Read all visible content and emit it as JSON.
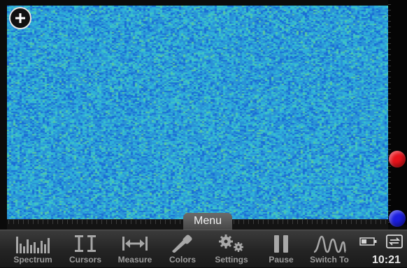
{
  "spectrogram": {
    "palette": [
      "#1a6fd6",
      "#2a93d6",
      "#2fb0d8",
      "#3fc4c4",
      "#57c9a0"
    ]
  },
  "menu_tab": {
    "label": "Menu"
  },
  "toolbar": {
    "items": [
      {
        "label": "Spectrum",
        "icon": "spectrum-bars-icon"
      },
      {
        "label": "Cursors",
        "icon": "cursors-icon"
      },
      {
        "label": "Measure",
        "icon": "measure-icon"
      },
      {
        "label": "Colors",
        "icon": "eyedropper-icon"
      },
      {
        "label": "Settings",
        "icon": "gears-icon"
      },
      {
        "label": "Pause",
        "icon": "pause-icon"
      },
      {
        "label": "Switch To",
        "icon": "waveform-icon"
      }
    ]
  },
  "status": {
    "time": "10:21",
    "battery_icon": "battery-icon",
    "screen_icon": "screen-mirror-icon"
  },
  "markers": {
    "top": {
      "color": "#e8121a"
    },
    "bottom": {
      "color": "#1b1ee0"
    }
  },
  "add_button": {
    "icon": "plus-icon"
  }
}
